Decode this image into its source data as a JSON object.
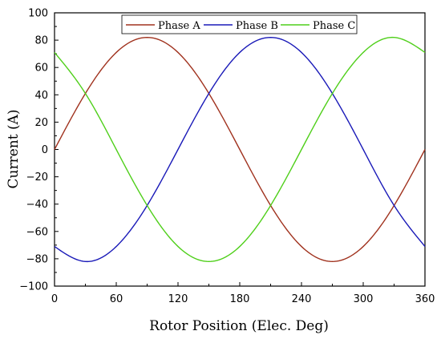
{
  "chart_data": {
    "type": "line",
    "xlabel": "Rotor Position (Elec. Deg)",
    "ylabel": "Current (A)",
    "xlim": [
      0,
      360
    ],
    "ylim": [
      -100,
      100
    ],
    "xticks": [
      0,
      60,
      120,
      180,
      240,
      300,
      360
    ],
    "yticks": [
      -100,
      -80,
      -60,
      -40,
      -20,
      0,
      20,
      40,
      60,
      80,
      100
    ],
    "grid": false,
    "legend_position": "top",
    "x": [
      0,
      30,
      60,
      90,
      120,
      150,
      180,
      210,
      240,
      270,
      300,
      330,
      360
    ],
    "series": [
      {
        "name": "Phase A",
        "color": "#a0321e",
        "values": [
          0,
          41,
          71,
          82,
          71,
          41,
          0,
          -41,
          -71,
          -82,
          -71,
          -41,
          0
        ]
      },
      {
        "name": "Phase B",
        "color": "#1a1ab8",
        "values": [
          -71,
          -82,
          -71,
          -41,
          0,
          41,
          71,
          82,
          71,
          41,
          0,
          -41,
          -71
        ]
      },
      {
        "name": "Phase C",
        "color": "#4fcf1a",
        "values": [
          71,
          41,
          0,
          -41,
          -71,
          -82,
          -71,
          -41,
          0,
          41,
          71,
          82,
          71
        ]
      }
    ]
  }
}
